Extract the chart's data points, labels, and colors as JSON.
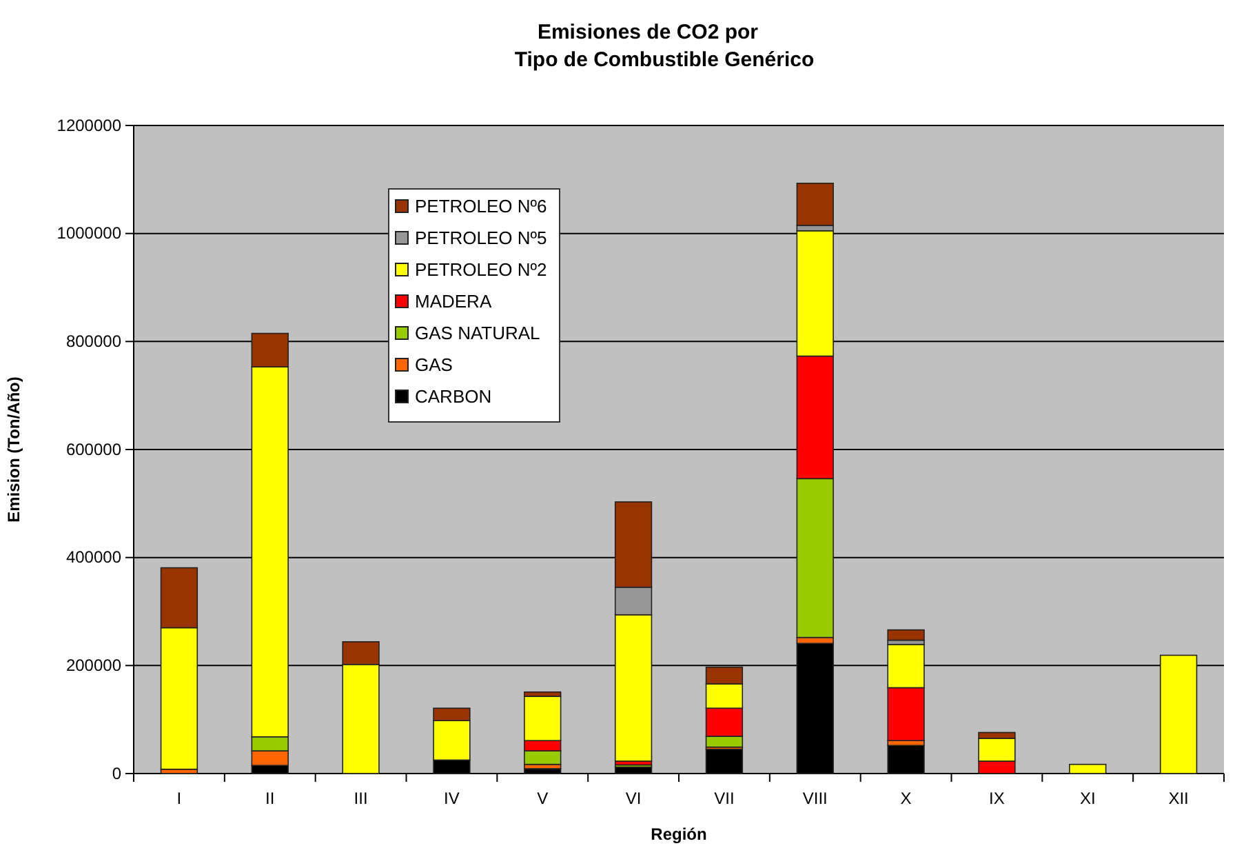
{
  "chart_data": {
    "type": "bar",
    "stacked": true,
    "title": "Emisiones de CO2 por\nTipo de Combustible Genérico",
    "xlabel": "Región",
    "ylabel": "Emision (Ton/Año)",
    "categories": [
      "I",
      "II",
      "III",
      "IV",
      "V",
      "VI",
      "VII",
      "VIII",
      "X",
      "IX",
      "XI",
      "XII"
    ],
    "series": [
      {
        "name": "CARBON",
        "color": "#000000",
        "values": [
          0,
          15000,
          0,
          25000,
          9000,
          12000,
          45000,
          241000,
          52000,
          0,
          0,
          0
        ]
      },
      {
        "name": "GAS",
        "color": "#ff6600",
        "values": [
          8000,
          27000,
          null,
          0,
          8000,
          0,
          4000,
          11000,
          9000,
          0,
          0,
          0
        ]
      },
      {
        "name": "GAS NATURAL",
        "color": "#99cc00",
        "values": [
          0,
          26000,
          0,
          0,
          25000,
          4000,
          20000,
          294000,
          0,
          0,
          0,
          0
        ]
      },
      {
        "name": "MADERA",
        "color": "#ff0000",
        "values": [
          0,
          0,
          0,
          0,
          19000,
          7000,
          52000,
          227000,
          98000,
          23000,
          0,
          0
        ]
      },
      {
        "name": "PETROLEO Nº2",
        "color": "#ffff00",
        "values": [
          262000,
          685000,
          202000,
          73000,
          82000,
          271000,
          45000,
          232000,
          80000,
          42000,
          17000,
          219000
        ]
      },
      {
        "name": "PETROLEO Nº5",
        "color": "#969696",
        "values": [
          0,
          0,
          0,
          0,
          0,
          51000,
          null,
          10000,
          8000,
          0,
          0,
          0
        ]
      },
      {
        "name": "PETROLEO Nº6",
        "color": "#993300",
        "values": [
          111000,
          62000,
          42000,
          23000,
          8000,
          158000,
          31000,
          78000,
          19000,
          11000,
          0,
          0
        ]
      }
    ],
    "ylim": [
      0,
      1200000
    ],
    "yticks": [
      0,
      200000,
      400000,
      600000,
      800000,
      1000000,
      1200000
    ],
    "grid": "y",
    "legend": "top left"
  }
}
